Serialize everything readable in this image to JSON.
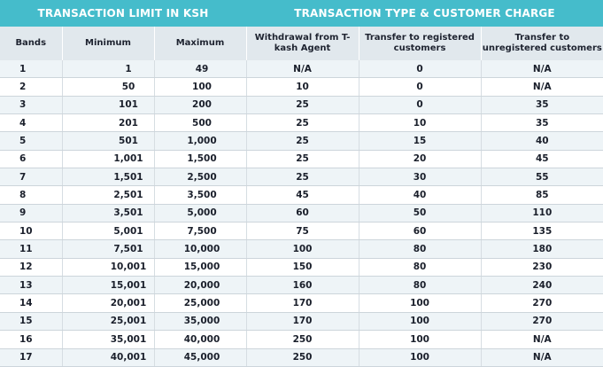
{
  "header_groups": [
    "TRANSACTION LIMIT IN KSH",
    "TRANSACTION TYPE & CUSTOMER CHARGE"
  ],
  "columns": [
    "Bands",
    "Minimum",
    "Maximum",
    "Withdrawal from T-kash Agent",
    "Transfer to registered customers",
    "Transfer to unregistered customers"
  ],
  "rows": [
    [
      "1",
      "1",
      "49",
      "N/A",
      "0",
      "N/A"
    ],
    [
      "2",
      "50",
      "100",
      "10",
      "0",
      "N/A"
    ],
    [
      "3",
      "101",
      "200",
      "25",
      "0",
      "35"
    ],
    [
      "4",
      "201",
      "500",
      "25",
      "10",
      "35"
    ],
    [
      "5",
      "501",
      "1,000",
      "25",
      "15",
      "40"
    ],
    [
      "6",
      "1,001",
      "1,500",
      "25",
      "20",
      "45"
    ],
    [
      "7",
      "1,501",
      "2,500",
      "25",
      "30",
      "55"
    ],
    [
      "8",
      "2,501",
      "3,500",
      "45",
      "40",
      "85"
    ],
    [
      "9",
      "3,501",
      "5,000",
      "60",
      "50",
      "110"
    ],
    [
      "10",
      "5,001",
      "7,500",
      "75",
      "60",
      "135"
    ],
    [
      "11",
      "7,501",
      "10,000",
      "100",
      "80",
      "180"
    ],
    [
      "12",
      "10,001",
      "15,000",
      "150",
      "80",
      "230"
    ],
    [
      "13",
      "15,001",
      "20,000",
      "160",
      "80",
      "240"
    ],
    [
      "14",
      "20,001",
      "25,000",
      "170",
      "100",
      "270"
    ],
    [
      "15",
      "25,001",
      "35,000",
      "170",
      "100",
      "270"
    ],
    [
      "16",
      "35,001",
      "40,000",
      "250",
      "100",
      "N/A"
    ],
    [
      "17",
      "40,001",
      "45,000",
      "250",
      "100",
      "N/A"
    ]
  ]
}
